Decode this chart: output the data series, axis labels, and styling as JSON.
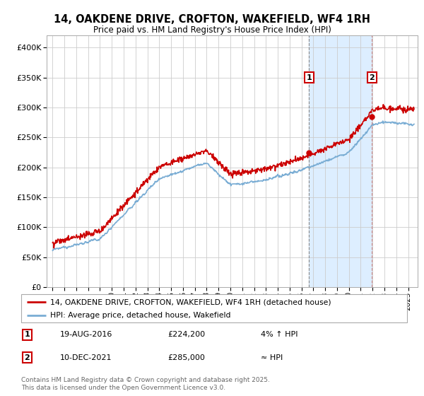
{
  "title": "14, OAKDENE DRIVE, CROFTON, WAKEFIELD, WF4 1RH",
  "subtitle": "Price paid vs. HM Land Registry's House Price Index (HPI)",
  "ylim": [
    0,
    420000
  ],
  "yticks": [
    0,
    50000,
    100000,
    150000,
    200000,
    250000,
    300000,
    350000,
    400000
  ],
  "xmin": 1994.5,
  "xmax": 2025.8,
  "marker1_x": 2016.64,
  "marker1_y": 224200,
  "marker1_label": "1",
  "marker1_date": "19-AUG-2016",
  "marker1_price": "£224,200",
  "marker1_hpi": "4% ↑ HPI",
  "marker2_x": 2021.94,
  "marker2_y": 285000,
  "marker2_label": "2",
  "marker2_date": "10-DEC-2021",
  "marker2_price": "£285,000",
  "marker2_hpi": "≈ HPI",
  "legend_line1": "14, OAKDENE DRIVE, CROFTON, WAKEFIELD, WF4 1RH (detached house)",
  "legend_line2": "HPI: Average price, detached house, Wakefield",
  "footer": "Contains HM Land Registry data © Crown copyright and database right 2025.\nThis data is licensed under the Open Government Licence v3.0.",
  "line_color_red": "#cc0000",
  "line_color_blue": "#7aadd4",
  "shade_color": "#ddeeff",
  "grid_color": "#cccccc",
  "background_color": "#ffffff",
  "marker_box_color": "#cc0000",
  "vline_color1": "#888888",
  "vline_color2": "#cc8888"
}
